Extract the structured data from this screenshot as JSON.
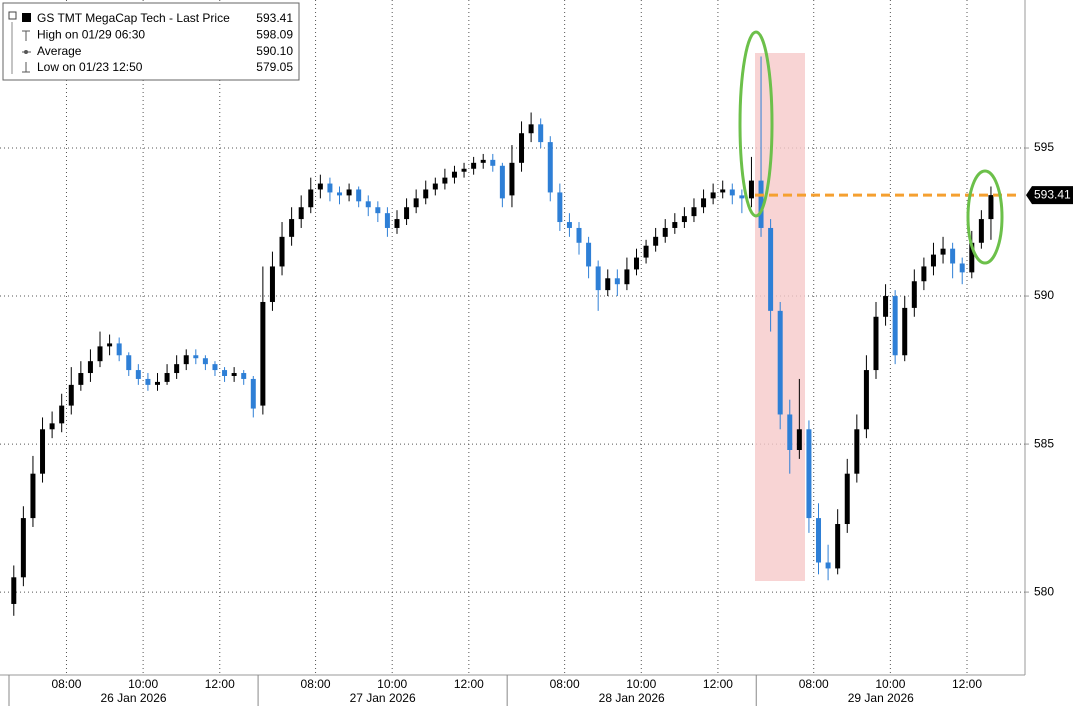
{
  "chart_data": {
    "type": "candlestick",
    "ylim": [
      577.2,
      600
    ],
    "yticks": [
      580,
      585,
      590,
      595
    ],
    "grid": true,
    "up_color": "#000000",
    "down_color": "#2e7fd6",
    "last_price_color": "#f5a030",
    "legend": [
      {
        "name": "GS TMT MegaCap Tech - Last Price",
        "value": 593.41
      },
      {
        "name": "High on 01/29 06:30",
        "value": 598.09
      },
      {
        "name": "Average",
        "value": {
          "value": 590.1,
          "label": "590.10"
        }
      },
      {
        "name": "Low on 01/23 12:50",
        "value": 579.05
      }
    ],
    "days": [
      {
        "label": "26 Jan 2026",
        "ticks": [
          {
            "value": 6,
            "label": "08:00"
          },
          {
            "value": 14,
            "label": "10:00"
          },
          {
            "value": 22,
            "label": "12:00"
          }
        ],
        "open": [
          579.6,
          580.5,
          582.5,
          584,
          585.5,
          585.7,
          586.3,
          587,
          587.4,
          587.8,
          588.3,
          588.4,
          588,
          587.5,
          587.2,
          587,
          587.1,
          587.4,
          587.7,
          588,
          587.9,
          587.7,
          587.5,
          587.3,
          587.4,
          587.2
        ],
        "high": [
          580.9,
          582.9,
          584.6,
          585.9,
          586.1,
          586.7,
          587.6,
          587.8,
          588.2,
          588.8,
          588.7,
          588.6,
          588.1,
          587.7,
          587.4,
          587.4,
          587.7,
          588,
          588.2,
          588.2,
          588,
          587.8,
          587.6,
          587.6,
          587.5,
          587.3
        ],
        "low": [
          579.2,
          580.2,
          582.2,
          583.7,
          585.2,
          585.4,
          586,
          586.8,
          587.1,
          587.6,
          588,
          587.8,
          587.3,
          587,
          586.8,
          586.8,
          587,
          587.2,
          587.5,
          587.7,
          587.5,
          587.3,
          587.1,
          587.1,
          587,
          585.9
        ],
        "close": [
          580.5,
          582.5,
          584,
          585.5,
          585.7,
          586.3,
          587,
          587.4,
          587.8,
          588.3,
          588.4,
          588,
          587.5,
          587.2,
          587,
          587.1,
          587.4,
          587.7,
          588,
          587.9,
          587.7,
          587.5,
          587.3,
          587.4,
          587.2,
          586.2
        ]
      },
      {
        "label": "27 Jan 2026",
        "ticks": [
          {
            "value": 6,
            "label": "08:00"
          },
          {
            "value": 14,
            "label": "10:00"
          },
          {
            "value": 22,
            "label": "12:00"
          }
        ],
        "open": [
          586.3,
          589.8,
          591,
          592,
          592.6,
          593,
          593.6,
          593.8,
          593.5,
          593.4,
          593.6,
          593.2,
          593,
          592.8,
          592.3,
          592.6,
          593,
          593.3,
          593.6,
          593.8,
          594,
          594.2,
          594.3,
          594.5,
          594.6,
          594.4
        ],
        "high": [
          591,
          591.5,
          592.5,
          593,
          593.4,
          594,
          594.1,
          594,
          593.7,
          593.8,
          593.7,
          593.4,
          593.2,
          593,
          592.9,
          593.3,
          593.6,
          593.9,
          594,
          594.3,
          594.4,
          594.5,
          594.7,
          594.8,
          594.8,
          594.5
        ],
        "low": [
          586,
          589.5,
          590.7,
          591.7,
          592.3,
          592.8,
          593.3,
          593.2,
          593.1,
          593.2,
          593,
          592.7,
          592.5,
          592,
          592.1,
          592.4,
          592.8,
          593.1,
          593.4,
          593.6,
          593.8,
          594,
          594.1,
          594.3,
          594.2,
          593
        ],
        "close": [
          589.8,
          591,
          592,
          592.6,
          593,
          593.6,
          593.8,
          593.5,
          593.4,
          593.6,
          593.2,
          593,
          592.8,
          592.3,
          592.6,
          593,
          593.3,
          593.6,
          593.8,
          594,
          594.2,
          594.3,
          594.5,
          594.6,
          594.4,
          593.3
        ]
      },
      {
        "label": "28 Jan 2026",
        "ticks": [
          {
            "value": 6,
            "label": "08:00"
          },
          {
            "value": 14,
            "label": "10:00"
          },
          {
            "value": 22,
            "label": "12:00"
          }
        ],
        "open": [
          593.4,
          594.5,
          595.5,
          595.8,
          595.2,
          593.5,
          592.5,
          592.3,
          591.8,
          591,
          590.2,
          590.6,
          590.4,
          590.9,
          591.3,
          591.7,
          592,
          592.3,
          592.5,
          592.7,
          593,
          593.3,
          593.5,
          593.6,
          593.4,
          593.3
        ],
        "high": [
          595.1,
          595.9,
          596.2,
          596,
          595.4,
          593.8,
          592.8,
          592.5,
          592,
          591.2,
          590.9,
          590.9,
          591.3,
          591.6,
          591.9,
          592.3,
          592.6,
          592.8,
          593,
          593.3,
          593.6,
          593.8,
          593.9,
          593.8,
          593.6,
          594.7
        ],
        "low": [
          593,
          594.2,
          595.2,
          595,
          593.2,
          592.2,
          592,
          591.4,
          590.6,
          589.5,
          590,
          590,
          590.2,
          590.7,
          591.1,
          591.5,
          591.8,
          592.1,
          592.3,
          592.5,
          592.8,
          593.1,
          593.3,
          593.1,
          592.8,
          593
        ],
        "close": [
          594.5,
          595.5,
          595.8,
          595.2,
          593.5,
          592.5,
          592.3,
          591.8,
          591,
          590.2,
          590.6,
          590.4,
          590.9,
          591.3,
          591.7,
          592,
          592.3,
          592.5,
          592.7,
          593,
          593.3,
          593.5,
          593.6,
          593.4,
          593.3,
          593.9
        ]
      },
      {
        "label": "29 Jan 2026",
        "ticks": [
          {
            "value": 6,
            "label": "08:00"
          },
          {
            "value": 14,
            "label": "10:00"
          },
          {
            "value": 22,
            "label": "12:00"
          }
        ],
        "open": [
          593.9,
          592.3,
          589.5,
          586,
          584.8,
          585.5,
          582.5,
          581,
          580.8,
          582.3,
          584,
          585.5,
          587.5,
          589.3,
          590,
          588,
          589.6,
          590.5,
          591,
          591.4,
          591.6,
          591.1,
          590.8,
          591.8,
          592.6
        ],
        "high": [
          598.09,
          592.6,
          589.8,
          586.5,
          587.2,
          585.8,
          583,
          581.6,
          582.8,
          584.5,
          586,
          588,
          589.8,
          590.4,
          590.2,
          590,
          590.9,
          591.3,
          591.8,
          592,
          591.8,
          591.3,
          592.2,
          592.9,
          593.7
        ],
        "low": [
          592,
          588.8,
          585.5,
          584,
          584.5,
          582,
          580.6,
          580.4,
          580.6,
          582,
          583.7,
          585.2,
          587.2,
          589,
          587.7,
          587.8,
          589.3,
          590.2,
          590.7,
          591.1,
          590.6,
          590.4,
          590.6,
          591.6,
          591.9
        ],
        "close": [
          592.3,
          589.5,
          586,
          584.8,
          585.5,
          582.5,
          581,
          580.8,
          582.3,
          584,
          585.5,
          587.5,
          589.3,
          590,
          588,
          589.6,
          590.5,
          591,
          591.4,
          591.6,
          591.1,
          590.8,
          591.8,
          592.6,
          593.41
        ]
      }
    ]
  }
}
